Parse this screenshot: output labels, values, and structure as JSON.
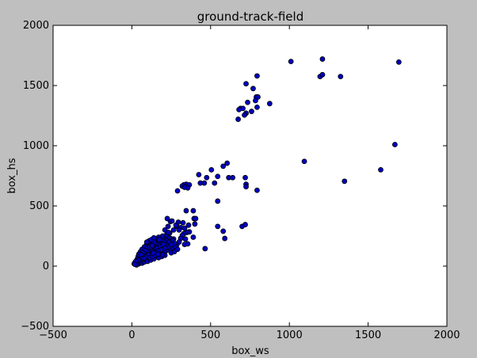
{
  "chart_data": {
    "type": "scatter",
    "title": "ground-track-field",
    "xlabel": "box_ws",
    "ylabel": "box_hs",
    "xlim": [
      -500,
      2000
    ],
    "ylim": [
      -500,
      2000
    ],
    "xticks": [
      -500,
      0,
      500,
      1000,
      1500,
      2000
    ],
    "yticks": [
      -500,
      0,
      500,
      1000,
      1500,
      2000
    ],
    "xtick_labels": [
      "−500",
      "0",
      "500",
      "1000",
      "1500",
      "2000"
    ],
    "ytick_labels": [
      "−500",
      "0",
      "500",
      "1000",
      "1500",
      "2000"
    ],
    "grid": false,
    "marker_color": "#0000bf",
    "marker_edge": "#000000",
    "series": [
      {
        "points": [
          [
            1010,
            1700
          ],
          [
            1210,
            1720
          ],
          [
            1695,
            1695
          ],
          [
            1195,
            1575
          ],
          [
            1210,
            1590
          ],
          [
            1325,
            1575
          ],
          [
            795,
            1580
          ],
          [
            725,
            1515
          ],
          [
            770,
            1475
          ],
          [
            790,
            1405
          ],
          [
            800,
            1405
          ],
          [
            785,
            1375
          ],
          [
            735,
            1360
          ],
          [
            875,
            1350
          ],
          [
            795,
            1320
          ],
          [
            690,
            1310
          ],
          [
            705,
            1310
          ],
          [
            680,
            1300
          ],
          [
            760,
            1285
          ],
          [
            725,
            1270
          ],
          [
            715,
            1255
          ],
          [
            675,
            1220
          ],
          [
            1670,
            1010
          ],
          [
            1095,
            870
          ],
          [
            1580,
            800
          ],
          [
            1350,
            705
          ],
          [
            605,
            855
          ],
          [
            580,
            830
          ],
          [
            505,
            800
          ],
          [
            425,
            760
          ],
          [
            475,
            735
          ],
          [
            545,
            745
          ],
          [
            615,
            735
          ],
          [
            640,
            735
          ],
          [
            720,
            735
          ],
          [
            725,
            680
          ],
          [
            725,
            660
          ],
          [
            435,
            690
          ],
          [
            460,
            690
          ],
          [
            345,
            680
          ],
          [
            330,
            675
          ],
          [
            365,
            675
          ],
          [
            320,
            665
          ],
          [
            335,
            655
          ],
          [
            355,
            650
          ],
          [
            290,
            625
          ],
          [
            525,
            690
          ],
          [
            795,
            630
          ],
          [
            345,
            460
          ],
          [
            390,
            460
          ],
          [
            545,
            540
          ],
          [
            545,
            330
          ],
          [
            580,
            290
          ],
          [
            590,
            230
          ],
          [
            700,
            330
          ],
          [
            720,
            345
          ],
          [
            465,
            145
          ],
          [
            400,
            350
          ],
          [
            360,
            340
          ],
          [
            335,
            315
          ],
          [
            310,
            320
          ],
          [
            285,
            330
          ],
          [
            365,
            285
          ],
          [
            350,
            280
          ],
          [
            330,
            270
          ],
          [
            320,
            255
          ],
          [
            390,
            240
          ],
          [
            340,
            225
          ],
          [
            310,
            230
          ],
          [
            265,
            225
          ],
          [
            245,
            230
          ],
          [
            300,
            200
          ],
          [
            335,
            180
          ],
          [
            355,
            185
          ],
          [
            285,
            175
          ],
          [
            260,
            165
          ],
          [
            240,
            160
          ],
          [
            230,
            180
          ],
          [
            225,
            195
          ],
          [
            215,
            175
          ],
          [
            205,
            160
          ],
          [
            190,
            145
          ],
          [
            220,
            135
          ],
          [
            200,
            130
          ],
          [
            180,
            120
          ],
          [
            160,
            110
          ],
          [
            150,
            100
          ],
          [
            135,
            95
          ],
          [
            120,
            85
          ],
          [
            105,
            75
          ],
          [
            90,
            60
          ],
          [
            75,
            50
          ],
          [
            60,
            40
          ],
          [
            50,
            30
          ],
          [
            45,
            20
          ],
          [
            35,
            15
          ],
          [
            30,
            10
          ],
          [
            25,
            25
          ],
          [
            40,
            35
          ],
          [
            55,
            55
          ],
          [
            70,
            70
          ],
          [
            85,
            90
          ],
          [
            100,
            110
          ],
          [
            115,
            125
          ],
          [
            130,
            140
          ],
          [
            145,
            155
          ],
          [
            160,
            170
          ],
          [
            175,
            185
          ],
          [
            190,
            200
          ],
          [
            205,
            215
          ],
          [
            220,
            230
          ],
          [
            230,
            245
          ],
          [
            195,
            250
          ],
          [
            170,
            240
          ],
          [
            150,
            225
          ],
          [
            130,
            210
          ],
          [
            110,
            195
          ],
          [
            95,
            180
          ],
          [
            80,
            160
          ],
          [
            65,
            140
          ],
          [
            55,
            120
          ],
          [
            45,
            100
          ],
          [
            40,
            80
          ],
          [
            35,
            60
          ],
          [
            30,
            45
          ],
          [
            20,
            30
          ],
          [
            15,
            20
          ],
          [
            65,
            25
          ],
          [
            80,
            35
          ],
          [
            95,
            45
          ],
          [
            110,
            55
          ],
          [
            125,
            65
          ],
          [
            140,
            75
          ],
          [
            155,
            85
          ],
          [
            170,
            95
          ],
          [
            185,
            105
          ],
          [
            200,
            115
          ],
          [
            215,
            125
          ],
          [
            230,
            135
          ],
          [
            245,
            145
          ],
          [
            260,
            155
          ],
          [
            275,
            165
          ],
          [
            150,
            190
          ],
          [
            120,
            175
          ],
          [
            100,
            150
          ],
          [
            85,
            130
          ],
          [
            70,
            110
          ],
          [
            60,
            95
          ],
          [
            100,
            40
          ],
          [
            120,
            50
          ],
          [
            140,
            60
          ],
          [
            170,
            70
          ],
          [
            190,
            80
          ],
          [
            210,
            90
          ],
          [
            250,
            110
          ],
          [
            270,
            120
          ],
          [
            290,
            140
          ],
          [
            170,
            210
          ],
          [
            140,
            200
          ],
          [
            115,
            160
          ],
          [
            130,
            170
          ],
          [
            160,
            150
          ],
          [
            180,
            160
          ],
          [
            200,
            180
          ],
          [
            240,
            200
          ],
          [
            260,
            210
          ],
          [
            270,
            190
          ],
          [
            250,
            180
          ],
          [
            225,
            160
          ],
          [
            210,
            150
          ],
          [
            185,
            135
          ],
          [
            165,
            125
          ],
          [
            145,
            115
          ],
          [
            125,
            105
          ],
          [
            105,
            95
          ],
          [
            85,
            75
          ],
          [
            75,
            65
          ],
          [
            60,
            60
          ],
          [
            50,
            45
          ],
          [
            40,
            50
          ],
          [
            25,
            40
          ],
          [
            20,
            15
          ],
          [
            110,
            210
          ],
          [
            95,
            200
          ],
          [
            125,
            220
          ],
          [
            140,
            235
          ],
          [
            175,
            220
          ],
          [
            220,
            260
          ],
          [
            240,
            275
          ],
          [
            210,
            300
          ],
          [
            230,
            330
          ],
          [
            225,
            395
          ],
          [
            245,
            370
          ],
          [
            255,
            375
          ],
          [
            265,
            300
          ],
          [
            300,
            300
          ],
          [
            325,
            360
          ],
          [
            295,
            365
          ],
          [
            395,
            395
          ],
          [
            405,
            395
          ],
          [
            280,
            340
          ],
          [
            230,
            280
          ],
          [
            115,
            70
          ],
          [
            130,
            80
          ],
          [
            150,
            90
          ],
          [
            195,
            95
          ],
          [
            165,
            100
          ],
          [
            135,
            110
          ]
        ]
      }
    ]
  }
}
